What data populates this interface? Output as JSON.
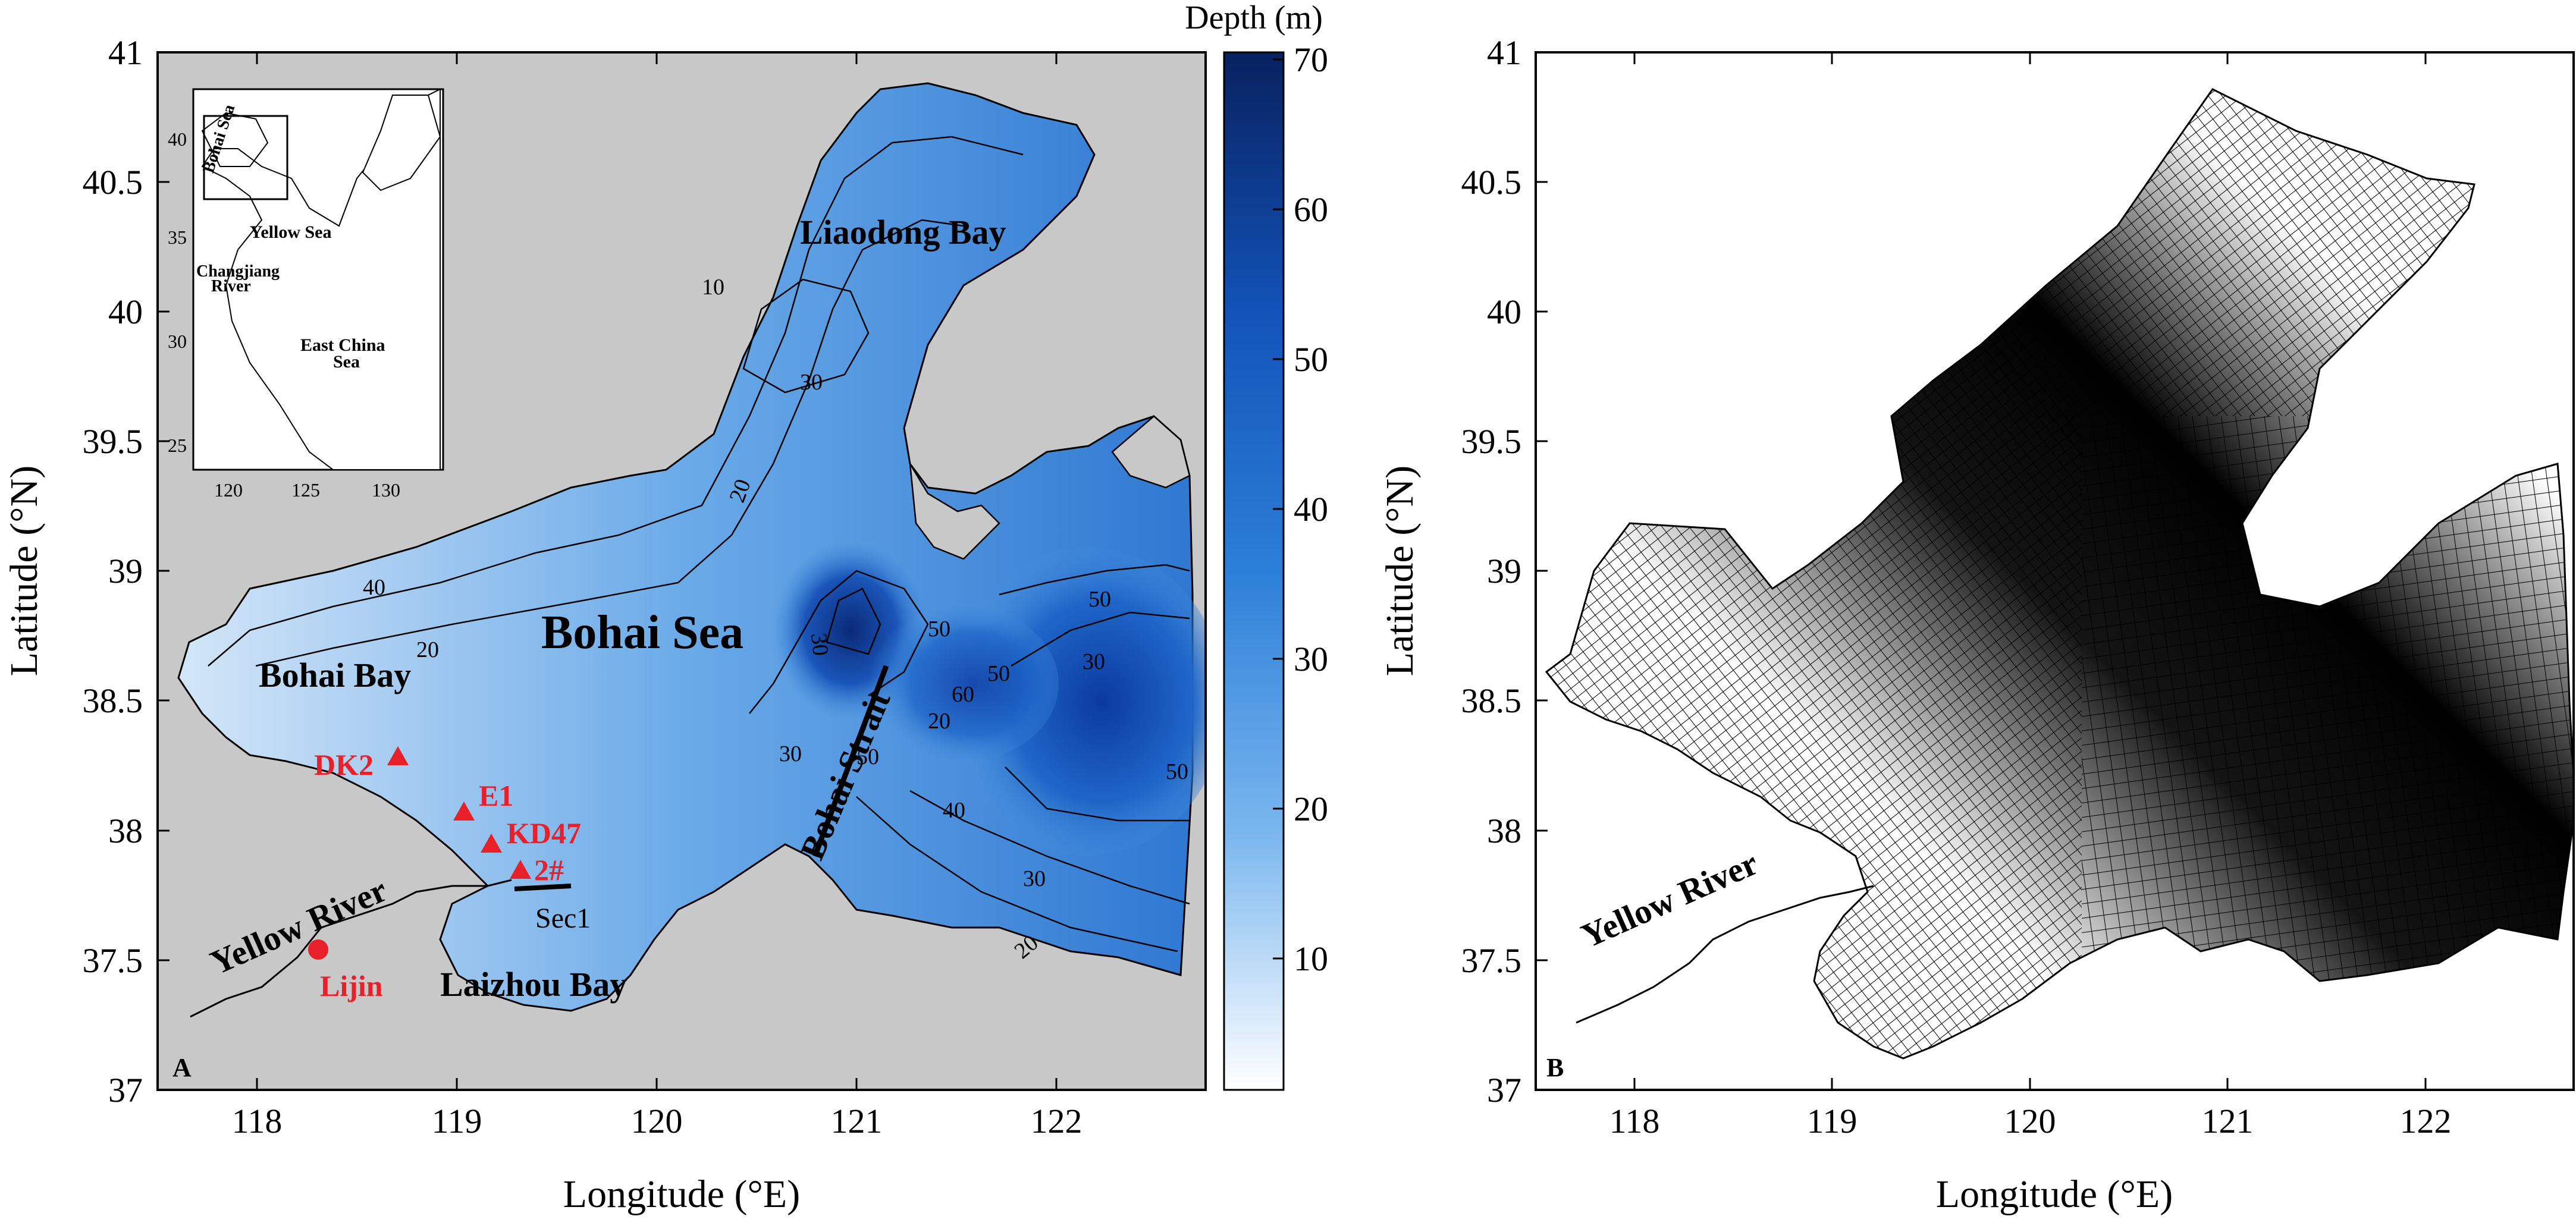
{
  "panels": [
    {
      "id": "A",
      "panel_label": "A",
      "xlabel": "Longitude (°E)",
      "ylabel": "Latitude (°N)",
      "xticks": [
        "118",
        "119",
        "120",
        "121",
        "122"
      ],
      "yticks": [
        "41",
        "40.5",
        "40",
        "39.5",
        "39",
        "38.5",
        "38",
        "37.5",
        "37"
      ],
      "xlim": [
        117.5,
        122.75
      ],
      "ylim": [
        37,
        41
      ],
      "colorbar": {
        "title": "Depth (m)",
        "ticks": [
          "70",
          "60",
          "50",
          "40",
          "30",
          "20",
          "10"
        ],
        "range": [
          0,
          70
        ],
        "color_top": "#08215f",
        "color_mid": "#2c7fd8",
        "color_bottom": "#ffffff"
      },
      "place_labels": {
        "bohai_sea": "Bohai Sea",
        "liaodong_bay": "Liaodong Bay",
        "bohai_bay": "Bohai Bay",
        "laizhou_bay": "Laizhou Bay",
        "bohai_strait": "Bohai Strait",
        "yellow_river": "Yellow River",
        "sec1": "Sec1"
      },
      "contour_labels": [
        "10",
        "20",
        "30",
        "40",
        "30",
        "50",
        "60",
        "50",
        "20",
        "30",
        "50",
        "30",
        "20",
        "40",
        "50",
        "30",
        "50",
        "20"
      ],
      "stations": [
        {
          "name": "DK2",
          "marker": "triangle",
          "lon": 118.72,
          "lat": 38.25
        },
        {
          "name": "E1",
          "marker": "triangle",
          "lon": 119.03,
          "lat": 38.05
        },
        {
          "name": "KD47",
          "marker": "triangle",
          "lon": 119.18,
          "lat": 37.92
        },
        {
          "name": "2#",
          "marker": "triangle",
          "lon": 119.3,
          "lat": 37.82
        },
        {
          "name": "Lijin",
          "marker": "circle",
          "lon": 118.3,
          "lat": 37.52
        }
      ],
      "inset": {
        "labels": {
          "bohai_sea": "Bohai Sea",
          "yellow_sea": "Yellow Sea",
          "changjiang": "Changjiang",
          "river": "River",
          "east_china": "East China",
          "sea": "Sea"
        },
        "xticks": [
          "120",
          "125",
          "130"
        ],
        "yticks": [
          "40",
          "35",
          "30",
          "25"
        ]
      },
      "colors": {
        "land": "#c8c8c8",
        "station": "#e8202a"
      }
    },
    {
      "id": "B",
      "panel_label": "B",
      "xlabel": "Longitude (°E)",
      "ylabel": "Latitude (°N)",
      "xticks": [
        "118",
        "119",
        "120",
        "121",
        "122"
      ],
      "yticks": [
        "41",
        "40.5",
        "40",
        "39.5",
        "39",
        "38.5",
        "38",
        "37.5",
        "37"
      ],
      "xlim": [
        117.5,
        122.75
      ],
      "ylim": [
        37,
        41
      ],
      "place_labels": {
        "yellow_river": "Yellow River"
      },
      "colors": {
        "mesh": "#000000"
      }
    }
  ]
}
